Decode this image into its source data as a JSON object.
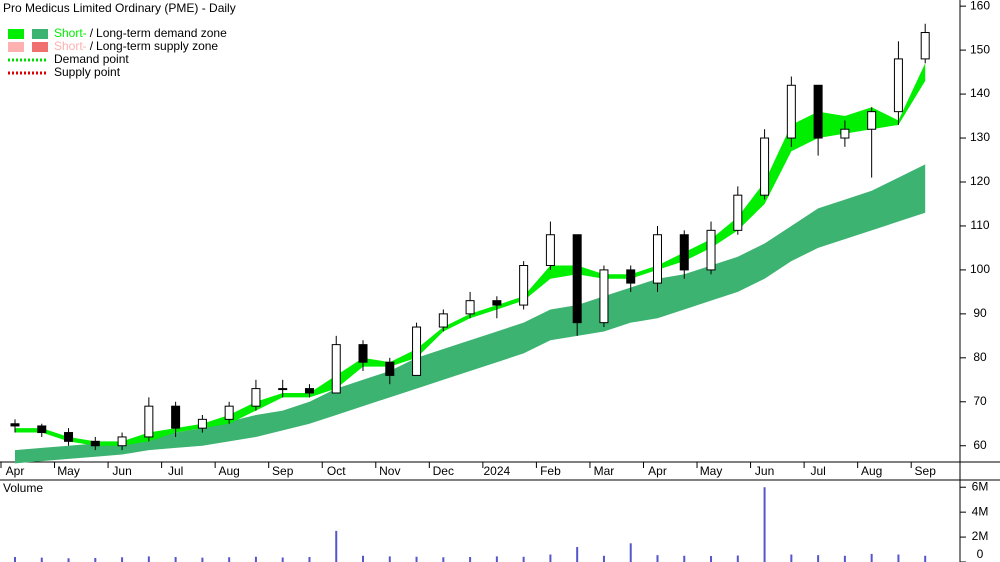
{
  "chart_data": [
    {
      "type": "candlestick",
      "title": "Pro Medicus Limited Ordinary (PME) - Daily",
      "legend": {
        "corner": "upper-left",
        "items": [
          {
            "short": "Short-",
            "sep": "/",
            "long": "Long-term demand zone",
            "short_color": "#00ee00",
            "long_color": "#3cb371"
          },
          {
            "short": "Short-",
            "sep": "/",
            "long": "Long-term supply zone",
            "short_color": "#ffb0b0",
            "long_color": "#f07070"
          },
          {
            "label": "Demand point",
            "color": "#00dd00"
          },
          {
            "label": "Supply point",
            "color": "#dd0000"
          }
        ]
      },
      "xlim": [
        -0.56,
        35.3
      ],
      "xticks": [
        {
          "value": 0,
          "label": "Apr"
        },
        {
          "value": 2,
          "label": "May"
        },
        {
          "value": 4,
          "label": "Jun"
        },
        {
          "value": 6,
          "label": "Jul"
        },
        {
          "value": 8,
          "label": "Aug"
        },
        {
          "value": 10,
          "label": "Sep"
        },
        {
          "value": 12,
          "label": "Oct"
        },
        {
          "value": 14,
          "label": "Nov"
        },
        {
          "value": 16,
          "label": "Dec"
        },
        {
          "value": 18,
          "label": "2024"
        },
        {
          "value": 20,
          "label": "Feb"
        },
        {
          "value": 22,
          "label": "Mar"
        },
        {
          "value": 24,
          "label": "Apr"
        },
        {
          "value": 26,
          "label": "May"
        },
        {
          "value": 28,
          "label": "Jun"
        },
        {
          "value": 30,
          "label": "Jul"
        },
        {
          "value": 32,
          "label": "Aug"
        },
        {
          "value": 34,
          "label": "Sep"
        }
      ],
      "ylim": [
        56.3,
        161.4
      ],
      "yticks": [
        60,
        70,
        80,
        90,
        100,
        110,
        120,
        130,
        140,
        150,
        160
      ],
      "up_color": "#ffffff",
      "down_color": "#000000",
      "open": [
        65,
        64.5,
        63,
        61,
        60,
        62,
        69,
        64,
        66,
        69,
        73,
        73,
        72,
        83,
        79,
        76,
        87,
        90,
        93,
        92,
        101,
        108,
        88,
        100,
        97,
        108,
        100,
        109,
        117,
        130,
        142,
        130,
        132,
        136,
        148
      ],
      "high": [
        66,
        65,
        64,
        62,
        63,
        71,
        70,
        67,
        70,
        75,
        75,
        74,
        85,
        84,
        80,
        88,
        91,
        95,
        94,
        102,
        111,
        108,
        101,
        101,
        110,
        109,
        111,
        119,
        132,
        144,
        142,
        134,
        137,
        152,
        156
      ],
      "low": [
        63,
        62,
        60,
        59,
        59,
        61,
        62,
        63,
        65,
        68,
        71,
        71,
        72,
        77,
        74,
        76,
        86,
        89,
        89,
        91,
        100,
        85,
        87,
        95,
        95,
        98,
        99,
        108,
        116,
        128,
        126,
        128,
        121,
        133,
        147
      ],
      "close": [
        64.5,
        63,
        61,
        60,
        62,
        69,
        64,
        66,
        69,
        73,
        73,
        72,
        83,
        79,
        76,
        87,
        90,
        93,
        92,
        101,
        108,
        88,
        100,
        97,
        108,
        100,
        109,
        117,
        130,
        142,
        130,
        132,
        136,
        148,
        154
      ],
      "zones": [
        {
          "color": "#3cb371",
          "upper": [
            59,
            59.5,
            60,
            60.5,
            61,
            62,
            63,
            64,
            65.5,
            67,
            68,
            70,
            73,
            75,
            77,
            80,
            82,
            84,
            86,
            88,
            91,
            92,
            94,
            96,
            98,
            99,
            101,
            103,
            106,
            110,
            114,
            116,
            118,
            121,
            124
          ],
          "lower": [
            56,
            56.5,
            57,
            57.5,
            58,
            59,
            59.5,
            60,
            61,
            62,
            63.5,
            65,
            67,
            69,
            71,
            73,
            75,
            77,
            79,
            81,
            84,
            85,
            86,
            88,
            89,
            91,
            93,
            95,
            98,
            102,
            105,
            107,
            109,
            111,
            113
          ]
        },
        {
          "color": "#00ee00",
          "upper": [
            64,
            64,
            62,
            61,
            61,
            63,
            64,
            65,
            67,
            70,
            72,
            72,
            76,
            80,
            79,
            82,
            87,
            90,
            92,
            94,
            101,
            101,
            99,
            99,
            101,
            104,
            107,
            112,
            120,
            133,
            136,
            135,
            137,
            134,
            147
          ],
          "lower": [
            63,
            63,
            61,
            60,
            60,
            61,
            63,
            64,
            65,
            68,
            71,
            71,
            73,
            78,
            78,
            80,
            86,
            89,
            91,
            93,
            98,
            99,
            98,
            98,
            100,
            102,
            105,
            109,
            115,
            127,
            130,
            131,
            132,
            133,
            143
          ]
        }
      ]
    },
    {
      "type": "bar",
      "title": "Volume",
      "title_color": "#5a2a9a",
      "color": "#5555cc",
      "ylim": [
        0,
        6580000
      ],
      "yticks": [
        0,
        {
          "value": 2000000,
          "label": "2M"
        },
        {
          "value": 4000000,
          "label": "4M"
        },
        {
          "value": 6000000,
          "label": "6M"
        }
      ],
      "values": [
        400000,
        350000,
        300000,
        320000,
        380000,
        450000,
        400000,
        350000,
        380000,
        420000,
        360000,
        400000,
        2500000,
        500000,
        450000,
        420000,
        380000,
        400000,
        450000,
        420000,
        600000,
        1200000,
        500000,
        1500000,
        550000,
        500000,
        480000,
        520000,
        6000000,
        600000,
        550000,
        500000,
        650000,
        600000,
        500000
      ]
    }
  ]
}
